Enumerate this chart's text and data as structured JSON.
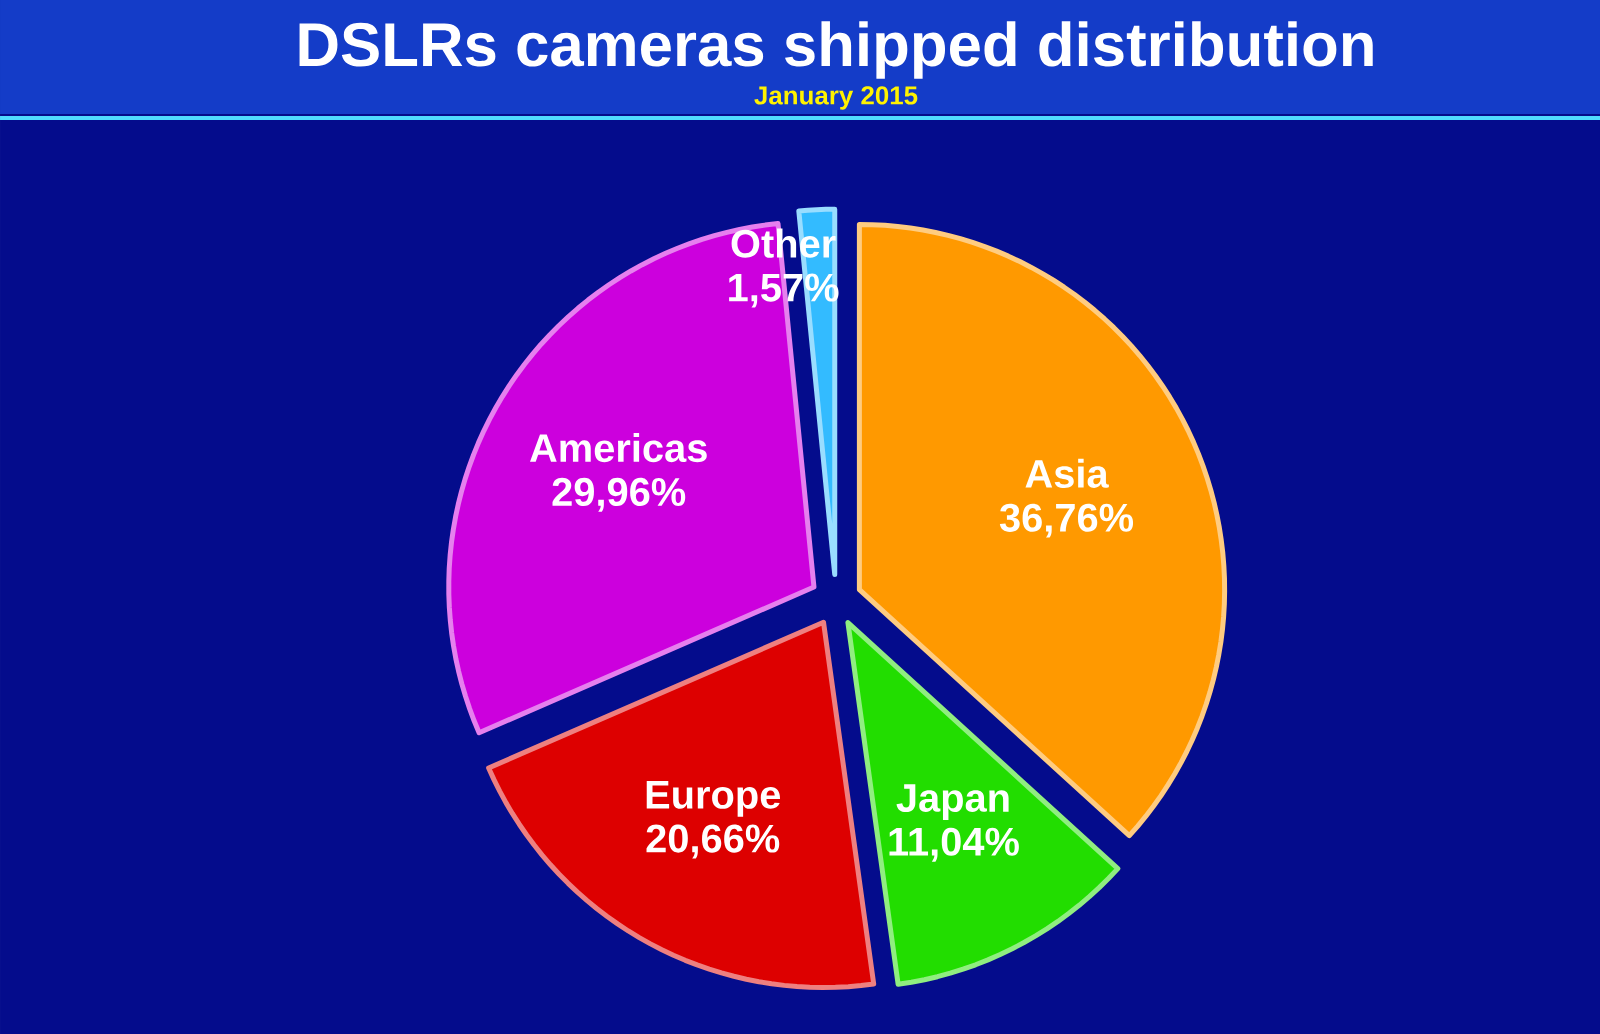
{
  "chart_data": {
    "type": "pie",
    "title": "DSLRs cameras shipped distribution",
    "subtitle": "January 2015",
    "categories": [
      "Asia",
      "Japan",
      "Europe",
      "Americas",
      "Other"
    ],
    "values": [
      36.76,
      11.04,
      20.66,
      29.96,
      1.57
    ],
    "value_labels": [
      "36,76%",
      "11,04%",
      "20,66%",
      "29,96%",
      "1,57%"
    ],
    "colors": [
      "#ff9900",
      "#22dd00",
      "#dd0000",
      "#cc00dd",
      "#33bbff"
    ]
  }
}
